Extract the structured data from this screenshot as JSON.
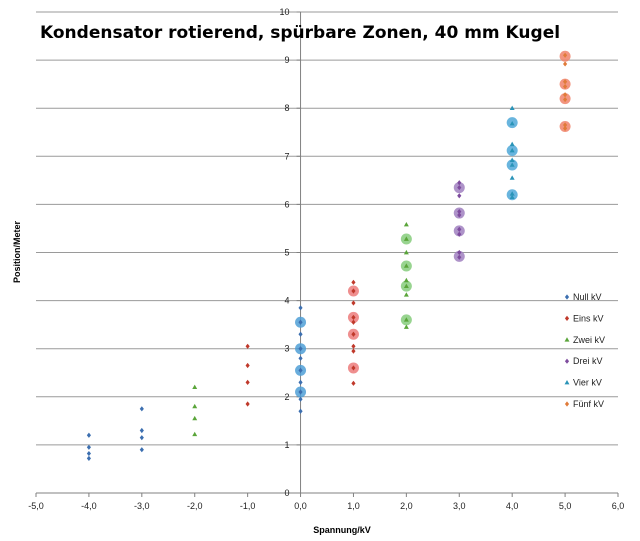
{
  "chart_data": {
    "type": "scatter",
    "title": "Kondensator rotierend, spürbare Zonen, 40 mm Kugel",
    "xlabel": "Spannung/kV",
    "ylabel": "Position/Meter",
    "xlim": [
      -5,
      6
    ],
    "ylim": [
      0,
      10
    ],
    "x_ticks": [
      "-5,0",
      "-4,0",
      "-3,0",
      "-2,0",
      "-1,0",
      "0,0",
      "1,0",
      "2,0",
      "3,0",
      "4,0",
      "5,0",
      "6,0"
    ],
    "y_ticks": [
      "0",
      "1",
      "2",
      "3",
      "4",
      "5",
      "6",
      "7",
      "8",
      "9",
      "10"
    ],
    "grid": {
      "horizontal": true,
      "vertical": false
    },
    "legend_position": "right",
    "series": [
      {
        "name": "Null kV",
        "marker": "diamond",
        "color": "#3c6fb0",
        "points": [
          [
            -4,
            0.72
          ],
          [
            -4,
            0.82
          ],
          [
            -4,
            0.95
          ],
          [
            -4,
            1.2
          ],
          [
            -3,
            0.9
          ],
          [
            -3,
            1.15
          ],
          [
            -3,
            1.3
          ],
          [
            -3,
            1.75
          ],
          [
            0,
            1.7
          ],
          [
            0,
            1.95
          ],
          [
            0,
            2.1
          ],
          [
            0,
            2.3
          ],
          [
            0,
            2.55
          ],
          [
            0,
            2.8
          ],
          [
            0,
            3.0
          ],
          [
            0,
            3.3
          ],
          [
            0,
            3.55
          ],
          [
            0,
            3.85
          ]
        ]
      },
      {
        "name": "Eins kV",
        "marker": "diamond",
        "color": "#c0392b",
        "points": [
          [
            -1,
            1.85
          ],
          [
            -1,
            2.3
          ],
          [
            -1,
            2.65
          ],
          [
            -1,
            3.05
          ],
          [
            1,
            2.28
          ],
          [
            1,
            2.6
          ],
          [
            1,
            2.95
          ],
          [
            1,
            3.05
          ],
          [
            1,
            3.3
          ],
          [
            1,
            3.55
          ],
          [
            1,
            3.65
          ],
          [
            1,
            3.95
          ],
          [
            1,
            4.2
          ],
          [
            1,
            4.38
          ]
        ]
      },
      {
        "name": "Zwei kV",
        "marker": "triangle",
        "color": "#5aa53a",
        "points": [
          [
            -2,
            1.22
          ],
          [
            -2,
            1.55
          ],
          [
            -2,
            1.8
          ],
          [
            -2,
            2.2
          ],
          [
            2,
            3.45
          ],
          [
            2,
            3.6
          ],
          [
            2,
            4.12
          ],
          [
            2,
            4.3
          ],
          [
            2,
            4.42
          ],
          [
            2,
            4.72
          ],
          [
            2,
            5.0
          ],
          [
            2,
            5.28
          ],
          [
            2,
            5.58
          ]
        ]
      },
      {
        "name": "Drei kV",
        "marker": "diamond",
        "color": "#7e4c9e",
        "points": [
          [
            3,
            4.9
          ],
          [
            3,
            5.0
          ],
          [
            3,
            5.38
          ],
          [
            3,
            5.48
          ],
          [
            3,
            5.78
          ],
          [
            3,
            5.85
          ],
          [
            3,
            6.18
          ],
          [
            3,
            6.35
          ],
          [
            3,
            6.45
          ]
        ]
      },
      {
        "name": "Vier kV",
        "marker": "triangle",
        "color": "#2a94b8",
        "points": [
          [
            4,
            6.15
          ],
          [
            4,
            6.22
          ],
          [
            4,
            6.55
          ],
          [
            4,
            6.82
          ],
          [
            4,
            6.92
          ],
          [
            4,
            7.12
          ],
          [
            4,
            7.25
          ],
          [
            4,
            7.68
          ],
          [
            4,
            8.0
          ]
        ]
      },
      {
        "name": "Fünf kV",
        "marker": "diamond",
        "color": "#e07b39",
        "points": [
          [
            5,
            7.58
          ],
          [
            5,
            7.65
          ],
          [
            5,
            8.18
          ],
          [
            5,
            8.28
          ],
          [
            5,
            8.45
          ],
          [
            5,
            8.55
          ],
          [
            5,
            8.92
          ],
          [
            5,
            9.1
          ]
        ]
      }
    ],
    "highlights": [
      {
        "x": 0,
        "y": 2.1,
        "color": "#4f9fd6"
      },
      {
        "x": 0,
        "y": 2.55,
        "color": "#4f9fd6"
      },
      {
        "x": 0,
        "y": 3.0,
        "color": "#4f9fd6"
      },
      {
        "x": 0,
        "y": 3.55,
        "color": "#4f9fd6"
      },
      {
        "x": 1,
        "y": 2.6,
        "color": "#ec7b7b"
      },
      {
        "x": 1,
        "y": 3.3,
        "color": "#ec7b7b"
      },
      {
        "x": 1,
        "y": 3.65,
        "color": "#ec7b7b"
      },
      {
        "x": 1,
        "y": 4.2,
        "color": "#ec7b7b"
      },
      {
        "x": 2,
        "y": 3.6,
        "color": "#86cd7c"
      },
      {
        "x": 2,
        "y": 4.3,
        "color": "#86cd7c"
      },
      {
        "x": 2,
        "y": 4.72,
        "color": "#86cd7c"
      },
      {
        "x": 2,
        "y": 5.28,
        "color": "#86cd7c"
      },
      {
        "x": 3,
        "y": 4.92,
        "color": "#a080c0"
      },
      {
        "x": 3,
        "y": 5.45,
        "color": "#a080c0"
      },
      {
        "x": 3,
        "y": 5.82,
        "color": "#a080c0"
      },
      {
        "x": 3,
        "y": 6.35,
        "color": "#a080c0"
      },
      {
        "x": 4,
        "y": 6.2,
        "color": "#4fa8d8"
      },
      {
        "x": 4,
        "y": 6.82,
        "color": "#4fa8d8"
      },
      {
        "x": 4,
        "y": 7.12,
        "color": "#4fa8d8"
      },
      {
        "x": 4,
        "y": 7.7,
        "color": "#4fa8d8"
      },
      {
        "x": 5,
        "y": 7.62,
        "color": "#f0836a"
      },
      {
        "x": 5,
        "y": 8.2,
        "color": "#f0836a"
      },
      {
        "x": 5,
        "y": 8.5,
        "color": "#f0836a"
      },
      {
        "x": 5,
        "y": 9.08,
        "color": "#f0836a"
      }
    ]
  }
}
